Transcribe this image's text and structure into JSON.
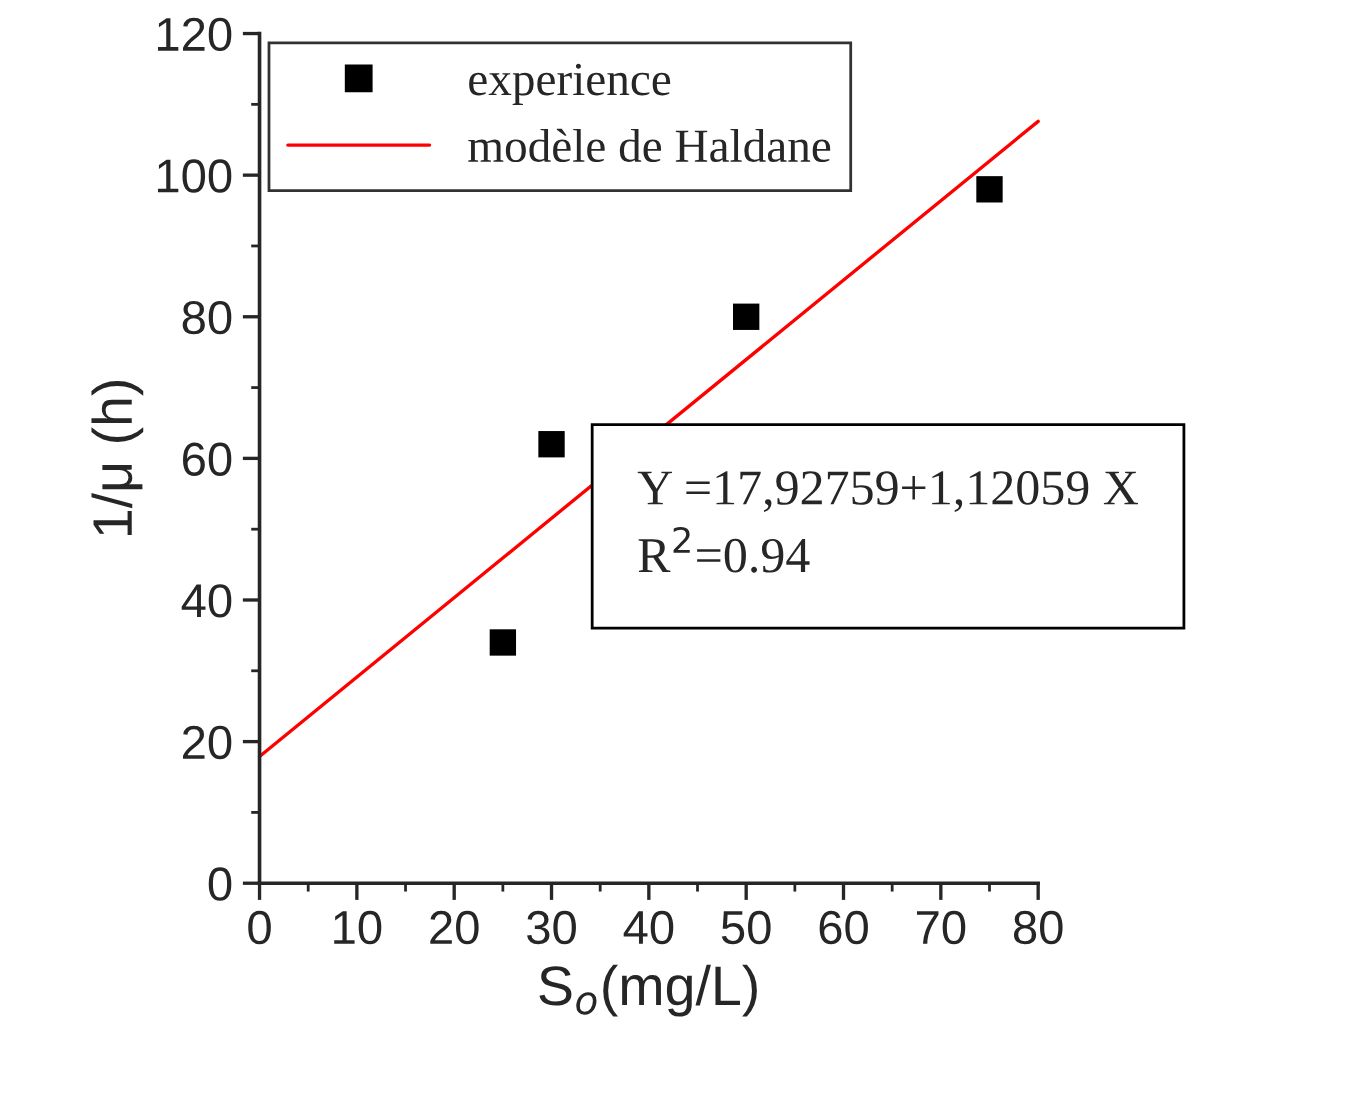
{
  "chart_data": {
    "type": "scatter",
    "xlabel": "S$_{o}$(mg/L)",
    "ylabel": "1/μ (h)",
    "xlim": [
      0,
      80
    ],
    "xticks": [
      0,
      10,
      20,
      30,
      40,
      50,
      60,
      70,
      80
    ],
    "ylim": [
      0,
      120
    ],
    "yticks": [
      0,
      20,
      40,
      60,
      80,
      100,
      120
    ],
    "grid": false,
    "legend": "top left",
    "annotations": [
      "Y =17,92759+1,12059 X\nR$^{2}$=0.94"
    ],
    "series": [
      {
        "name": "experience",
        "marker": "square",
        "color": "#000000",
        "x": [
          25,
          30,
          50,
          75
        ],
        "values": [
          34,
          62,
          80,
          98
        ]
      },
      {
        "name": "modèle de Haldane",
        "type": "line",
        "marker": "none",
        "line_style": "solid",
        "color": "#ff0000",
        "x": [
          0,
          80
        ],
        "values": [
          17.9,
          107.6
        ]
      }
    ]
  }
}
